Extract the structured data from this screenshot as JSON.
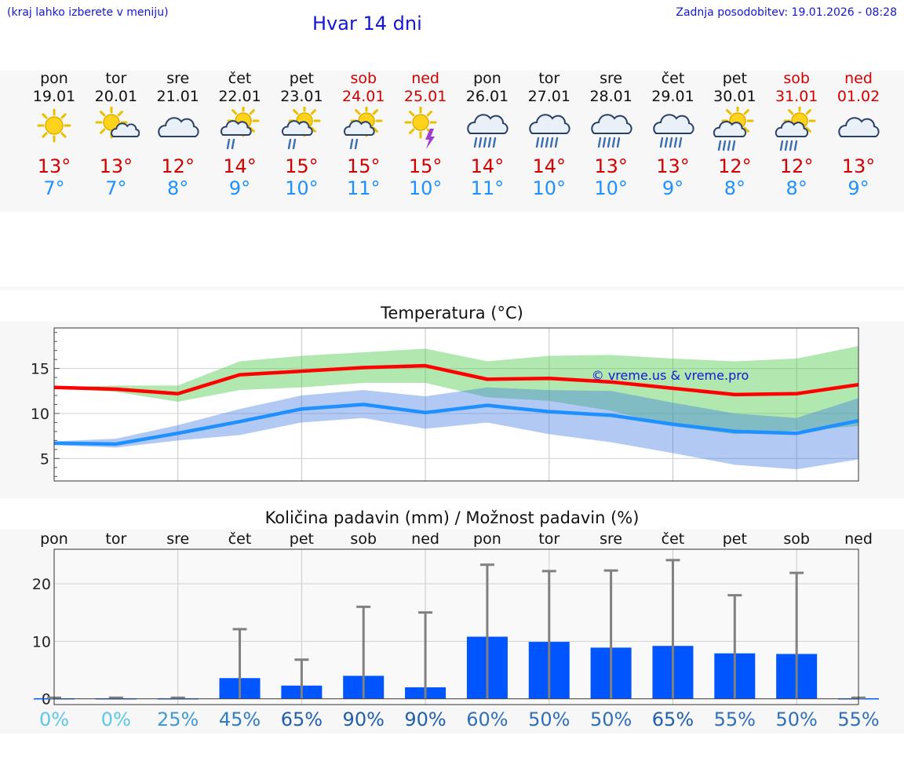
{
  "header": {
    "hint": "(kraj lahko izberete v meniju)",
    "title": "Hvar 14 dni",
    "updated": "Zadnja posodobitev: 19.01.2026 - 08:28"
  },
  "colors": {
    "weekday": "#111111",
    "weekend": "#d40000",
    "max": "#d40000",
    "min": "#1e90ff",
    "bar": "#0055ff"
  },
  "days": [
    {
      "name": "pon",
      "date": "19.01",
      "max": "13°",
      "min": "7°",
      "weekend": false,
      "icon": "sun-icon"
    },
    {
      "name": "tor",
      "date": "20.01",
      "max": "13°",
      "min": "7°",
      "weekend": false,
      "icon": "sun-small-cloud-icon"
    },
    {
      "name": "sre",
      "date": "21.01",
      "max": "12°",
      "min": "8°",
      "weekend": false,
      "icon": "cloud-icon"
    },
    {
      "name": "čet",
      "date": "22.01",
      "max": "14°",
      "min": "9°",
      "weekend": false,
      "icon": "sun-cloud-light-rain-icon"
    },
    {
      "name": "pet",
      "date": "23.01",
      "max": "15°",
      "min": "10°",
      "weekend": false,
      "icon": "sun-cloud-light-rain-icon"
    },
    {
      "name": "sob",
      "date": "24.01",
      "max": "15°",
      "min": "11°",
      "weekend": true,
      "icon": "sun-cloud-light-rain-icon"
    },
    {
      "name": "ned",
      "date": "25.01",
      "max": "15°",
      "min": "10°",
      "weekend": true,
      "icon": "sun-thunder-icon"
    },
    {
      "name": "pon",
      "date": "26.01",
      "max": "14°",
      "min": "11°",
      "weekend": false,
      "icon": "cloud-rain-icon"
    },
    {
      "name": "tor",
      "date": "27.01",
      "max": "14°",
      "min": "10°",
      "weekend": false,
      "icon": "cloud-rain-icon"
    },
    {
      "name": "sre",
      "date": "28.01",
      "max": "13°",
      "min": "10°",
      "weekend": false,
      "icon": "cloud-rain-icon"
    },
    {
      "name": "čet",
      "date": "29.01",
      "max": "13°",
      "min": "9°",
      "weekend": false,
      "icon": "cloud-rain-icon"
    },
    {
      "name": "pet",
      "date": "30.01",
      "max": "12°",
      "min": "8°",
      "weekend": false,
      "icon": "sun-cloud-rain-icon"
    },
    {
      "name": "sob",
      "date": "31.01",
      "max": "12°",
      "min": "8°",
      "weekend": true,
      "icon": "sun-cloud-rain-icon"
    },
    {
      "name": "ned",
      "date": "01.02",
      "max": "13°",
      "min": "9°",
      "weekend": true,
      "icon": "cloud-icon"
    }
  ],
  "chart_data": [
    {
      "type": "line",
      "title": "Temperatura (°C)",
      "watermark": "© vreme.us & vreme.pro",
      "x": [
        0,
        1,
        2,
        3,
        4,
        5,
        6,
        7,
        8,
        9,
        10,
        11,
        12,
        13
      ],
      "ylim": [
        2.5,
        19.5
      ],
      "yticks": [
        5,
        10,
        15
      ],
      "grid": true,
      "series": [
        {
          "name": "max",
          "values": [
            12.9,
            12.7,
            12.2,
            14.3,
            14.7,
            15.1,
            15.3,
            13.8,
            13.9,
            13.5,
            12.8,
            12.1,
            12.2,
            13.2
          ],
          "band_low": [
            12.8,
            12.4,
            11.3,
            12.6,
            12.9,
            13.4,
            13.4,
            11.8,
            11.4,
            10.3,
            8.6,
            7.7,
            8.1,
            8.6
          ],
          "band_high": [
            12.9,
            13.1,
            13.1,
            15.8,
            16.4,
            16.8,
            17.2,
            15.8,
            16.4,
            16.5,
            16.1,
            15.8,
            16.1,
            17.5
          ]
        },
        {
          "name": "min",
          "values": [
            6.7,
            6.6,
            7.8,
            9.1,
            10.5,
            11.0,
            10.1,
            10.9,
            10.2,
            9.8,
            8.8,
            8.0,
            7.8,
            9.2
          ],
          "band_low": [
            6.5,
            6.2,
            7.0,
            7.6,
            9.0,
            9.5,
            8.3,
            9.0,
            7.7,
            6.8,
            5.6,
            4.3,
            3.8,
            4.9
          ],
          "band_high": [
            6.9,
            7.2,
            8.7,
            10.5,
            12.0,
            12.6,
            11.9,
            12.9,
            12.6,
            12.5,
            11.2,
            10.0,
            9.5,
            11.7
          ]
        }
      ]
    },
    {
      "type": "bar",
      "title": "Količina padavin (mm) / Možnost padavin (%)",
      "categories": [
        "pon",
        "tor",
        "sre",
        "čet",
        "pet",
        "sob",
        "ned",
        "pon",
        "tor",
        "sre",
        "čet",
        "pet",
        "sob",
        "ned"
      ],
      "values": [
        0.1,
        0.1,
        0.1,
        3.6,
        2.3,
        4.0,
        2.0,
        10.8,
        9.9,
        8.9,
        9.2,
        7.9,
        7.8,
        0.1
      ],
      "error_high": [
        0.2,
        0.2,
        0.2,
        12.1,
        6.8,
        16.0,
        15.0,
        23.3,
        22.2,
        22.3,
        24.1,
        18.0,
        21.9,
        0.2
      ],
      "ylim": [
        -1,
        26
      ],
      "yticks": [
        0,
        10,
        20
      ],
      "probabilities": [
        "0%",
        "0%",
        "25%",
        "45%",
        "65%",
        "90%",
        "90%",
        "60%",
        "50%",
        "50%",
        "65%",
        "55%",
        "50%",
        "55%"
      ],
      "probability_colors": [
        "#5bc8e8",
        "#5bc8e8",
        "#3f9ad8",
        "#2f7cc4",
        "#1f5fae",
        "#1f5fae",
        "#1f5fae",
        "#2f6fbb",
        "#2f6fbb",
        "#2f6fbb",
        "#1f5fae",
        "#2f6fbb",
        "#2f6fbb",
        "#2f6fbb"
      ]
    }
  ]
}
